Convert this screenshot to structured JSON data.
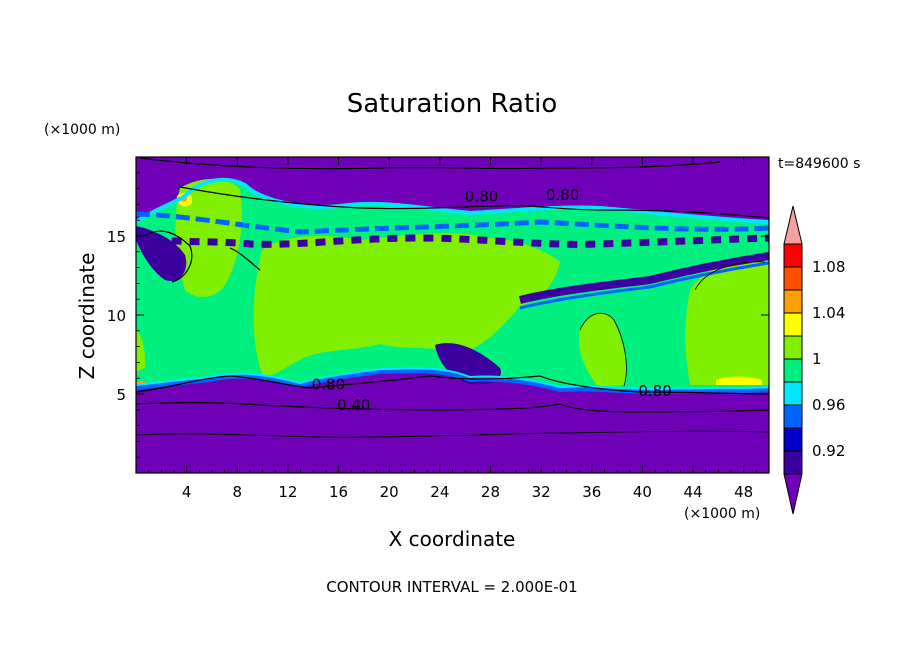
{
  "chart_data": {
    "type": "heatmap",
    "title": "Saturation Ratio",
    "xlabel": "X coordinate",
    "ylabel": "Z coordinate",
    "x_unit": "(×1000 m)",
    "y_unit": "(×1000 m)",
    "time_label": "t=849600 s",
    "footer": "CONTOUR INTERVAL = 2.000E-01",
    "xlim": [
      0,
      50
    ],
    "ylim": [
      0,
      20
    ],
    "x_ticks": [
      4,
      8,
      12,
      16,
      20,
      24,
      28,
      32,
      36,
      40,
      44,
      48
    ],
    "x_tick_labels": [
      "4",
      "8",
      "12",
      "16",
      "20",
      "24",
      "28",
      "32",
      "36",
      "40",
      "44",
      "48"
    ],
    "y_ticks": [
      5,
      10,
      15
    ],
    "y_tick_labels": [
      "5",
      "10",
      "15"
    ],
    "contour_labels": [
      {
        "text": "0.80",
        "x": 27.3,
        "z": 17.3
      },
      {
        "text": "0.80",
        "x": 33.7,
        "z": 17.4
      },
      {
        "text": "0.80",
        "x": 15.2,
        "z": 5.4
      },
      {
        "text": "0.40",
        "x": 17.2,
        "z": 4.1
      },
      {
        "text": "0.80",
        "x": 41.0,
        "z": 5.0
      }
    ],
    "colorbar": {
      "colors": [
        "#7000b8",
        "#3c00a0",
        "#0000c8",
        "#0064ff",
        "#00e6ff",
        "#00f080",
        "#80f000",
        "#ffff00",
        "#ffa000",
        "#ff5000",
        "#ff0000",
        "#f4a0a0"
      ],
      "tick_labels": [
        "0.92",
        "0.96",
        "1",
        "1.04",
        "1.08"
      ],
      "extend": "both"
    },
    "field_colors": {
      "dry": "#7000b8",
      "near": "#00f080",
      "sat": "#80f000",
      "subsat": "#3c00a0",
      "blue": "#0064ff",
      "cyan": "#00e6ff",
      "yellow": "#ffff00",
      "orange": "#ffa000",
      "red": "#ff0000"
    }
  }
}
